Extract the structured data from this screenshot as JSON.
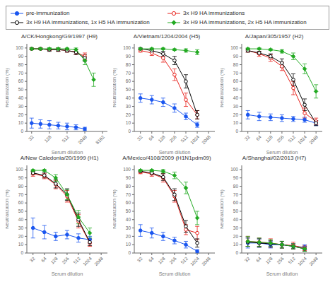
{
  "chart_data": [
    {
      "type": "scatter",
      "title": "A/CK/Hongkong/G9/1997 (H9)",
      "x_label": "Serum dilution",
      "y_label": "Neutralization (%)",
      "log": "x",
      "xlim": [
        22,
        12000
      ],
      "ylim": [
        0,
        105
      ],
      "xticks": [
        32,
        128,
        512,
        2048,
        8192
      ],
      "yticks": [
        0,
        10,
        20,
        30,
        40,
        50,
        60,
        70,
        80,
        90,
        100
      ],
      "legend": "top",
      "series": [
        {
          "name": "pre-immunization",
          "color": "#1a56f0",
          "marker": "circle",
          "line_style": "solid",
          "x": [
            32,
            64,
            128,
            256,
            512,
            1024,
            2048
          ],
          "values": [
            10,
            9,
            8,
            7,
            6,
            5,
            3
          ],
          "yerr": [
            6,
            5,
            5,
            4,
            4,
            3,
            2
          ]
        },
        {
          "name": "3x H9 HA immunizations",
          "color": "#e8201a",
          "marker": "circle_open",
          "line_style": "solid",
          "x": [
            32,
            64,
            128,
            256,
            512,
            1024,
            2048
          ],
          "values": [
            99,
            99,
            98,
            98,
            97,
            95,
            90
          ],
          "yerr": [
            1,
            1,
            1,
            2,
            2,
            3,
            4
          ]
        },
        {
          "name": "3x H9 HA immunizations, 1x H5 HA immunization",
          "color": "#000000",
          "marker": "circle_open",
          "line_style": "solid",
          "x": [
            32,
            64,
            128,
            256,
            512,
            1024,
            2048
          ],
          "values": [
            99,
            99,
            98,
            98,
            97,
            95,
            88
          ],
          "yerr": [
            1,
            1,
            2,
            2,
            2,
            3,
            4
          ]
        },
        {
          "name": "3x H9 HA immunizations, 2x H5 HA immunization",
          "color": "#22aa22",
          "marker": "diamond",
          "line_style": "solid",
          "x": [
            32,
            64,
            128,
            256,
            512,
            1024,
            2048,
            4096
          ],
          "values": [
            99,
            99,
            99,
            99,
            99,
            98,
            85,
            62
          ],
          "yerr": [
            1,
            1,
            1,
            1,
            1,
            2,
            5,
            8
          ]
        }
      ]
    },
    {
      "type": "scatter",
      "title": "A/Vietnam/1204/2004 (H5)",
      "x_label": "Serum dilution",
      "y_label": "Neutralization (%)",
      "log": "x",
      "xlim": [
        22,
        3000
      ],
      "ylim": [
        0,
        105
      ],
      "xticks": [
        32,
        64,
        128,
        256,
        512,
        1024,
        2048
      ],
      "yticks": [
        0,
        10,
        20,
        30,
        40,
        50,
        60,
        70,
        80,
        90,
        100
      ],
      "legend": "top",
      "series": [
        {
          "name": "pre-immunization",
          "color": "#1a56f0",
          "marker": "circle",
          "line_style": "solid",
          "x": [
            32,
            64,
            128,
            256,
            512,
            1024
          ],
          "values": [
            40,
            38,
            35,
            28,
            18,
            8
          ],
          "yerr": [
            5,
            5,
            5,
            5,
            4,
            3
          ]
        },
        {
          "name": "3x H9 HA immunizations",
          "color": "#e8201a",
          "marker": "circle_open",
          "line_style": "solid",
          "x": [
            32,
            64,
            128,
            256,
            512,
            1024
          ],
          "values": [
            97,
            94,
            88,
            68,
            38,
            20
          ],
          "yerr": [
            2,
            3,
            5,
            7,
            8,
            5
          ]
        },
        {
          "name": "3x H9 HA immunizations, 1x H5 HA immunization",
          "color": "#000000",
          "marker": "circle_open",
          "line_style": "solid",
          "x": [
            32,
            64,
            128,
            256,
            512,
            1024
          ],
          "values": [
            99,
            97,
            93,
            85,
            60,
            20
          ],
          "yerr": [
            1,
            2,
            3,
            5,
            8,
            5
          ]
        },
        {
          "name": "3x H9 HA immunizations, 2x H5 HA immunization",
          "color": "#22aa22",
          "marker": "diamond",
          "line_style": "solid",
          "x": [
            32,
            64,
            128,
            256,
            512,
            1024
          ],
          "values": [
            99,
            99,
            99,
            98,
            97,
            95
          ],
          "yerr": [
            1,
            1,
            1,
            1,
            2,
            3
          ]
        }
      ]
    },
    {
      "type": "scatter",
      "title": "A/Japan/305/1957 (H2)",
      "x_label": "Serum dilution",
      "y_label": "Neutralization (%)",
      "log": "x",
      "xlim": [
        22,
        3000
      ],
      "ylim": [
        0,
        105
      ],
      "xticks": [
        32,
        64,
        128,
        256,
        512,
        1024,
        2048
      ],
      "yticks": [
        0,
        10,
        20,
        30,
        40,
        50,
        60,
        70,
        80,
        90,
        100
      ],
      "legend": "top",
      "series": [
        {
          "name": "pre-immunization",
          "color": "#1a56f0",
          "marker": "circle",
          "line_style": "solid",
          "x": [
            32,
            64,
            128,
            256,
            512,
            1024,
            2048
          ],
          "values": [
            20,
            18,
            17,
            16,
            15,
            14,
            10
          ],
          "yerr": [
            5,
            5,
            4,
            4,
            3,
            3,
            3
          ]
        },
        {
          "name": "3x H9 HA immunizations",
          "color": "#e8201a",
          "marker": "circle_open",
          "line_style": "solid",
          "x": [
            32,
            64,
            128,
            256,
            512,
            1024,
            2048
          ],
          "values": [
            97,
            93,
            88,
            78,
            52,
            22,
            12
          ],
          "yerr": [
            2,
            3,
            4,
            5,
            8,
            6,
            4
          ]
        },
        {
          "name": "3x H9 HA immunizations, 1x H5 HA immunization",
          "color": "#000000",
          "marker": "circle_open",
          "line_style": "solid",
          "x": [
            32,
            64,
            128,
            256,
            512,
            1024,
            2048
          ],
          "values": [
            97,
            94,
            90,
            82,
            62,
            32,
            10
          ],
          "yerr": [
            2,
            2,
            3,
            5,
            7,
            7,
            3
          ]
        },
        {
          "name": "3x H9 HA immunizations, 2x H5 HA immunization",
          "color": "#22aa22",
          "marker": "diamond",
          "line_style": "solid",
          "x": [
            32,
            64,
            128,
            256,
            512,
            1024,
            2048
          ],
          "values": [
            99,
            99,
            98,
            96,
            90,
            75,
            48
          ],
          "yerr": [
            1,
            1,
            1,
            2,
            4,
            6,
            8
          ]
        }
      ]
    },
    {
      "type": "scatter",
      "title": "A/New Caledonia/20/1999 (H1)",
      "x_label": "Serum dilution",
      "y_label": "Neutralization (%)",
      "log": "x",
      "xlim": [
        22,
        3000
      ],
      "ylim": [
        0,
        105
      ],
      "xticks": [
        32,
        64,
        128,
        256,
        512,
        1024,
        2048
      ],
      "yticks": [
        0,
        10,
        20,
        30,
        40,
        50,
        60,
        70,
        80,
        90,
        100
      ],
      "legend": "top",
      "series": [
        {
          "name": "pre-immunization",
          "color": "#1a56f0",
          "marker": "circle",
          "line_style": "solid",
          "x": [
            32,
            64,
            128,
            256,
            512,
            1024
          ],
          "values": [
            30,
            25,
            20,
            22,
            18,
            16
          ],
          "yerr": [
            12,
            8,
            5,
            5,
            5,
            4
          ]
        },
        {
          "name": "3x H9 HA immunizations",
          "color": "#e8201a",
          "marker": "circle_open",
          "line_style": "solid",
          "x": [
            32,
            64,
            128,
            256,
            512,
            1024
          ],
          "values": [
            95,
            92,
            82,
            68,
            38,
            12
          ],
          "yerr": [
            3,
            3,
            5,
            7,
            8,
            4
          ]
        },
        {
          "name": "3x H9 HA immunizations, 1x H5 HA immunization",
          "color": "#000000",
          "marker": "circle_open",
          "line_style": "solid",
          "x": [
            32,
            64,
            128,
            256,
            512,
            1024
          ],
          "values": [
            96,
            93,
            83,
            70,
            40,
            13
          ],
          "yerr": [
            2,
            3,
            5,
            7,
            8,
            4
          ]
        },
        {
          "name": "3x H9 HA immunizations, 2x H5 HA immunization",
          "color": "#22aa22",
          "marker": "diamond",
          "line_style": "solid",
          "x": [
            32,
            64,
            128,
            256,
            512,
            1024
          ],
          "values": [
            99,
            99,
            90,
            70,
            43,
            24
          ],
          "yerr": [
            1,
            1,
            4,
            6,
            8,
            6
          ]
        }
      ]
    },
    {
      "type": "scatter",
      "title": "A/Mexico/4108/2009 (H1N1pdm09)",
      "x_label": "Serum dilution",
      "y_label": "Neutralization (%)",
      "log": "x",
      "xlim": [
        22,
        3000
      ],
      "ylim": [
        0,
        105
      ],
      "xticks": [
        32,
        64,
        128,
        256,
        512,
        1024,
        2048
      ],
      "yticks": [
        0,
        10,
        20,
        30,
        40,
        50,
        60,
        70,
        80,
        90,
        100
      ],
      "legend": "top",
      "series": [
        {
          "name": "pre-immunization",
          "color": "#1a56f0",
          "marker": "circle",
          "line_style": "solid",
          "x": [
            32,
            64,
            128,
            256,
            512,
            1024
          ],
          "values": [
            27,
            24,
            20,
            15,
            10,
            2
          ],
          "yerr": [
            7,
            6,
            5,
            4,
            4,
            2
          ]
        },
        {
          "name": "3x H9 HA immunizations",
          "color": "#e8201a",
          "marker": "circle_open",
          "line_style": "solid",
          "x": [
            32,
            64,
            128,
            256,
            512,
            1024
          ],
          "values": [
            97,
            95,
            90,
            68,
            28,
            24
          ],
          "yerr": [
            2,
            3,
            5,
            7,
            6,
            8
          ]
        },
        {
          "name": "3x H9 HA immunizations, 1x H5 HA immunization",
          "color": "#000000",
          "marker": "circle_open",
          "line_style": "solid",
          "x": [
            32,
            64,
            128,
            256,
            512,
            1024
          ],
          "values": [
            98,
            96,
            91,
            70,
            32,
            12
          ],
          "yerr": [
            1,
            2,
            4,
            7,
            7,
            5
          ]
        },
        {
          "name": "3x H9 HA immunizations, 2x H5 HA immunization",
          "color": "#22aa22",
          "marker": "diamond",
          "line_style": "solid",
          "x": [
            32,
            64,
            128,
            256,
            512,
            1024
          ],
          "values": [
            99,
            99,
            98,
            93,
            78,
            42
          ],
          "yerr": [
            1,
            1,
            2,
            4,
            7,
            8
          ]
        }
      ]
    },
    {
      "type": "scatter",
      "title": "A/Shanghai/02/2013 (H7)",
      "x_label": "Serum dilution",
      "y_label": "Neutralization (%)",
      "log": "x",
      "xlim": [
        22,
        3000
      ],
      "ylim": [
        0,
        105
      ],
      "xticks": [
        32,
        64,
        128,
        256,
        512,
        1024,
        2048
      ],
      "yticks": [
        0,
        10,
        20,
        30,
        40,
        50,
        60,
        70,
        80,
        90,
        100
      ],
      "legend": "top",
      "series": [
        {
          "name": "pre-immunization",
          "color": "#1a56f0",
          "marker": "circle",
          "line_style": "solid",
          "x": [
            32,
            64,
            128,
            256,
            512,
            1024
          ],
          "values": [
            12,
            12,
            10,
            10,
            8,
            7
          ],
          "yerr": [
            6,
            5,
            4,
            4,
            3,
            3
          ]
        },
        {
          "name": "3x H9 HA immunizations",
          "color": "#e8201a",
          "marker": "circle_open",
          "line_style": "solid",
          "x": [
            32,
            64,
            128,
            256,
            512,
            1024
          ],
          "values": [
            14,
            13,
            12,
            10,
            9,
            6
          ],
          "yerr": [
            6,
            5,
            5,
            4,
            4,
            3
          ]
        },
        {
          "name": "3x H9 HA immunizations, 1x H5 HA immunization",
          "color": "#000000",
          "marker": "circle_open",
          "line_style": "solid",
          "x": [
            32,
            64,
            128,
            256,
            512,
            1024
          ],
          "values": [
            13,
            12,
            11,
            10,
            8,
            5
          ],
          "yerr": [
            5,
            5,
            4,
            4,
            3,
            3
          ]
        },
        {
          "name": "3x H9 HA immunizations, 2x H5 HA immunization",
          "color": "#22aa22",
          "marker": "diamond",
          "line_style": "solid",
          "x": [
            32,
            64,
            128,
            256,
            512,
            1024
          ],
          "values": [
            14,
            13,
            12,
            10,
            8,
            5
          ],
          "yerr": [
            6,
            5,
            4,
            4,
            3,
            3
          ]
        }
      ]
    }
  ]
}
